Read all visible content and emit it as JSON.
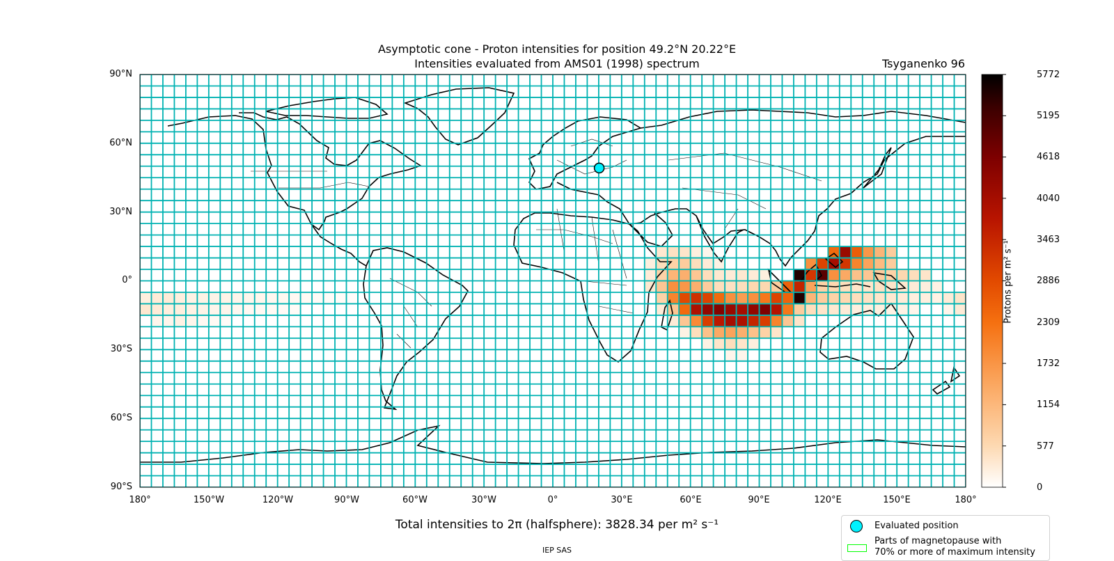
{
  "title": {
    "line1": "Asymptotic cone - Proton intensities for position 49.2°N 20.22°E",
    "line2": "Intensities evaluated from AMS01 (1998) spectrum",
    "model": "Tsyganenko 96"
  },
  "map": {
    "grid_color": "#00b2b2",
    "land_outline_color": "#000000",
    "evaluated_position": {
      "lat": 49.2,
      "lon": 20.22,
      "color": "#00f2ff"
    },
    "lat_ticks": [
      "90°N",
      "60°N",
      "30°N",
      "0°",
      "30°S",
      "60°S",
      "90°S"
    ],
    "lon_ticks": [
      "180°",
      "150°W",
      "120°W",
      "90°W",
      "60°W",
      "30°W",
      "0°",
      "30°E",
      "60°E",
      "90°E",
      "120°E",
      "150°E",
      "180°"
    ]
  },
  "colorbar": {
    "label": "Protons per m² s⁻¹",
    "min": 0,
    "max": 5772,
    "ticks": [
      "5772",
      "5195",
      "4618",
      "4040",
      "3463",
      "2886",
      "2309",
      "1732",
      "1154",
      "577",
      "0"
    ],
    "colormap": "gist_heat_r"
  },
  "chart_data": {
    "type": "heatmap",
    "cell_size_deg": {
      "lon": 5,
      "lat": 5
    },
    "units": "protons per m2 s-1",
    "cells": [
      {
        "lon": 45,
        "lat": 15,
        "value": 350
      },
      {
        "lon": 50,
        "lat": 15,
        "value": 450
      },
      {
        "lon": 55,
        "lat": 15,
        "value": 400
      },
      {
        "lon": 60,
        "lat": 15,
        "value": 250
      },
      {
        "lon": 65,
        "lat": 15,
        "value": 150
      },
      {
        "lon": 40,
        "lat": 10,
        "value": 250
      },
      {
        "lon": 45,
        "lat": 10,
        "value": 500
      },
      {
        "lon": 50,
        "lat": 10,
        "value": 700
      },
      {
        "lon": 55,
        "lat": 10,
        "value": 800
      },
      {
        "lon": 60,
        "lat": 10,
        "value": 500
      },
      {
        "lon": 65,
        "lat": 10,
        "value": 300
      },
      {
        "lon": 70,
        "lat": 10,
        "value": 200
      },
      {
        "lon": 40,
        "lat": 5,
        "value": 300
      },
      {
        "lon": 45,
        "lat": 5,
        "value": 700
      },
      {
        "lon": 50,
        "lat": 5,
        "value": 1200
      },
      {
        "lon": 55,
        "lat": 5,
        "value": 1300
      },
      {
        "lon": 60,
        "lat": 5,
        "value": 900
      },
      {
        "lon": 65,
        "lat": 5,
        "value": 500
      },
      {
        "lon": 70,
        "lat": 5,
        "value": 350
      },
      {
        "lon": 75,
        "lat": 5,
        "value": 300
      },
      {
        "lon": 80,
        "lat": 5,
        "value": 350
      },
      {
        "lon": 85,
        "lat": 5,
        "value": 300
      },
      {
        "lon": 90,
        "lat": 5,
        "value": 250
      },
      {
        "lon": 40,
        "lat": 0,
        "value": 350
      },
      {
        "lon": 45,
        "lat": 0,
        "value": 900
      },
      {
        "lon": 50,
        "lat": 0,
        "value": 1800
      },
      {
        "lon": 55,
        "lat": 0,
        "value": 1700
      },
      {
        "lon": 60,
        "lat": 0,
        "value": 1300
      },
      {
        "lon": 65,
        "lat": 0,
        "value": 800
      },
      {
        "lon": 70,
        "lat": 0,
        "value": 500
      },
      {
        "lon": 75,
        "lat": 0,
        "value": 450
      },
      {
        "lon": 80,
        "lat": 0,
        "value": 500
      },
      {
        "lon": 85,
        "lat": 0,
        "value": 600
      },
      {
        "lon": 90,
        "lat": 0,
        "value": 600
      },
      {
        "lon": 95,
        "lat": 0,
        "value": 800
      },
      {
        "lon": 45,
        "lat": -5,
        "value": 700
      },
      {
        "lon": 50,
        "lat": -5,
        "value": 2000
      },
      {
        "lon": 55,
        "lat": -5,
        "value": 2900
      },
      {
        "lon": 60,
        "lat": -5,
        "value": 3300
      },
      {
        "lon": 65,
        "lat": -5,
        "value": 3000
      },
      {
        "lon": 70,
        "lat": -5,
        "value": 2400
      },
      {
        "lon": 75,
        "lat": -5,
        "value": 1800
      },
      {
        "lon": 80,
        "lat": -5,
        "value": 1600
      },
      {
        "lon": 85,
        "lat": -5,
        "value": 1800
      },
      {
        "lon": 90,
        "lat": -5,
        "value": 2200
      },
      {
        "lon": 95,
        "lat": -5,
        "value": 3000
      },
      {
        "lon": 100,
        "lat": -5,
        "value": 2500
      },
      {
        "lon": 45,
        "lat": -10,
        "value": 300
      },
      {
        "lon": 50,
        "lat": -10,
        "value": 900
      },
      {
        "lon": 55,
        "lat": -10,
        "value": 2400
      },
      {
        "lon": 60,
        "lat": -10,
        "value": 3900
      },
      {
        "lon": 65,
        "lat": -10,
        "value": 4300
      },
      {
        "lon": 70,
        "lat": -10,
        "value": 4500
      },
      {
        "lon": 75,
        "lat": -10,
        "value": 4200
      },
      {
        "lon": 80,
        "lat": -10,
        "value": 4000
      },
      {
        "lon": 85,
        "lat": -10,
        "value": 4300
      },
      {
        "lon": 90,
        "lat": -10,
        "value": 4600
      },
      {
        "lon": 95,
        "lat": -10,
        "value": 3800
      },
      {
        "lon": 100,
        "lat": -10,
        "value": 2300
      },
      {
        "lon": 105,
        "lat": -10,
        "value": 900
      },
      {
        "lon": 50,
        "lat": -15,
        "value": 300
      },
      {
        "lon": 55,
        "lat": -15,
        "value": 900
      },
      {
        "lon": 60,
        "lat": -15,
        "value": 1900
      },
      {
        "lon": 65,
        "lat": -15,
        "value": 3100
      },
      {
        "lon": 70,
        "lat": -15,
        "value": 3700
      },
      {
        "lon": 75,
        "lat": -15,
        "value": 4000
      },
      {
        "lon": 80,
        "lat": -15,
        "value": 3900
      },
      {
        "lon": 85,
        "lat": -15,
        "value": 3500
      },
      {
        "lon": 90,
        "lat": -15,
        "value": 3100
      },
      {
        "lon": 95,
        "lat": -15,
        "value": 2000
      },
      {
        "lon": 100,
        "lat": -15,
        "value": 900
      },
      {
        "lon": 105,
        "lat": -15,
        "value": 400
      },
      {
        "lon": 55,
        "lat": -20,
        "value": 200
      },
      {
        "lon": 60,
        "lat": -20,
        "value": 500
      },
      {
        "lon": 65,
        "lat": -20,
        "value": 1000
      },
      {
        "lon": 70,
        "lat": -20,
        "value": 1400
      },
      {
        "lon": 75,
        "lat": -20,
        "value": 1500
      },
      {
        "lon": 80,
        "lat": -20,
        "value": 1300
      },
      {
        "lon": 85,
        "lat": -20,
        "value": 1000
      },
      {
        "lon": 90,
        "lat": -20,
        "value": 700
      },
      {
        "lon": 95,
        "lat": -20,
        "value": 400
      },
      {
        "lon": 65,
        "lat": -25,
        "value": 200
      },
      {
        "lon": 70,
        "lat": -25,
        "value": 400
      },
      {
        "lon": 75,
        "lat": -25,
        "value": 500
      },
      {
        "lon": 80,
        "lat": -25,
        "value": 400
      },
      {
        "lon": 85,
        "lat": -25,
        "value": 250
      },
      {
        "lon": 75,
        "lat": -30,
        "value": 150
      },
      {
        "lon": 80,
        "lat": -30,
        "value": 150
      },
      {
        "lon": 100,
        "lat": 0,
        "value": 2500
      },
      {
        "lon": 105,
        "lat": 0,
        "value": 3500
      },
      {
        "lon": 110,
        "lat": 0,
        "value": 1500
      },
      {
        "lon": 115,
        "lat": 0,
        "value": 700
      },
      {
        "lon": 120,
        "lat": 0,
        "value": 600
      },
      {
        "lon": 125,
        "lat": 0,
        "value": 500
      },
      {
        "lon": 130,
        "lat": 0,
        "value": 400
      },
      {
        "lon": 135,
        "lat": 0,
        "value": 400
      },
      {
        "lon": 140,
        "lat": 0,
        "value": 450
      },
      {
        "lon": 145,
        "lat": 0,
        "value": 400
      },
      {
        "lon": 150,
        "lat": 0,
        "value": 350
      },
      {
        "lon": 155,
        "lat": 0,
        "value": 300
      },
      {
        "lon": 160,
        "lat": 0,
        "value": 250
      },
      {
        "lon": 165,
        "lat": 0,
        "value": 200
      },
      {
        "lon": 105,
        "lat": 5,
        "value": 5500
      },
      {
        "lon": 110,
        "lat": 5,
        "value": 3200
      },
      {
        "lon": 115,
        "lat": 5,
        "value": 5000
      },
      {
        "lon": 120,
        "lat": 5,
        "value": 1800
      },
      {
        "lon": 125,
        "lat": 5,
        "value": 1400
      },
      {
        "lon": 130,
        "lat": 5,
        "value": 1000
      },
      {
        "lon": 135,
        "lat": 5,
        "value": 900
      },
      {
        "lon": 140,
        "lat": 5,
        "value": 800
      },
      {
        "lon": 145,
        "lat": 5,
        "value": 700
      },
      {
        "lon": 150,
        "lat": 5,
        "value": 600
      },
      {
        "lon": 155,
        "lat": 5,
        "value": 500
      },
      {
        "lon": 160,
        "lat": 5,
        "value": 400
      },
      {
        "lon": 100,
        "lat": -5,
        "value": 2500
      },
      {
        "lon": 105,
        "lat": -5,
        "value": 5500
      },
      {
        "lon": 110,
        "lat": -5,
        "value": 1200
      },
      {
        "lon": 115,
        "lat": -5,
        "value": 800
      },
      {
        "lon": 120,
        "lat": -5,
        "value": 700
      },
      {
        "lon": 125,
        "lat": -5,
        "value": 600
      },
      {
        "lon": 130,
        "lat": -5,
        "value": 500
      },
      {
        "lon": 135,
        "lat": -5,
        "value": 450
      },
      {
        "lon": 140,
        "lat": -5,
        "value": 400
      },
      {
        "lon": 145,
        "lat": -5,
        "value": 350
      },
      {
        "lon": 150,
        "lat": -5,
        "value": 300
      },
      {
        "lon": 155,
        "lat": -5,
        "value": 250
      },
      {
        "lon": 160,
        "lat": -5,
        "value": 250
      },
      {
        "lon": 165,
        "lat": -5,
        "value": 200
      },
      {
        "lon": 170,
        "lat": -5,
        "value": 300
      },
      {
        "lon": 175,
        "lat": -5,
        "value": 400
      },
      {
        "lon": 100,
        "lat": -10,
        "value": 2200
      },
      {
        "lon": 105,
        "lat": -10,
        "value": 800
      },
      {
        "lon": 110,
        "lat": -10,
        "value": 500
      },
      {
        "lon": 115,
        "lat": -10,
        "value": 400
      },
      {
        "lon": 120,
        "lat": -10,
        "value": 350
      },
      {
        "lon": 125,
        "lat": -10,
        "value": 300
      },
      {
        "lon": 130,
        "lat": -10,
        "value": 250
      },
      {
        "lon": 135,
        "lat": -10,
        "value": 250
      },
      {
        "lon": 140,
        "lat": -10,
        "value": 250
      },
      {
        "lon": 145,
        "lat": -10,
        "value": 200
      },
      {
        "lon": 150,
        "lat": -10,
        "value": 200
      },
      {
        "lon": 155,
        "lat": -10,
        "value": 150
      },
      {
        "lon": 170,
        "lat": -10,
        "value": 150
      },
      {
        "lon": 175,
        "lat": -10,
        "value": 300
      },
      {
        "lon": 110,
        "lat": 10,
        "value": 1800
      },
      {
        "lon": 115,
        "lat": 10,
        "value": 3000
      },
      {
        "lon": 120,
        "lat": 10,
        "value": 4000
      },
      {
        "lon": 125,
        "lat": 10,
        "value": 3200
      },
      {
        "lon": 130,
        "lat": 10,
        "value": 2000
      },
      {
        "lon": 135,
        "lat": 10,
        "value": 1500
      },
      {
        "lon": 140,
        "lat": 10,
        "value": 1100
      },
      {
        "lon": 145,
        "lat": 10,
        "value": 800
      },
      {
        "lon": 120,
        "lat": 15,
        "value": 2400
      },
      {
        "lon": 125,
        "lat": 15,
        "value": 4200
      },
      {
        "lon": 130,
        "lat": 15,
        "value": 2600
      },
      {
        "lon": 135,
        "lat": 15,
        "value": 1700
      },
      {
        "lon": 140,
        "lat": 15,
        "value": 1200
      },
      {
        "lon": 145,
        "lat": 15,
        "value": 800
      },
      {
        "lon": -180,
        "lat": -5,
        "value": 250
      },
      {
        "lon": -175,
        "lat": -5,
        "value": 300
      },
      {
        "lon": -170,
        "lat": -5,
        "value": 300
      },
      {
        "lon": -165,
        "lat": -5,
        "value": 250
      },
      {
        "lon": -160,
        "lat": -5,
        "value": 200
      },
      {
        "lon": -155,
        "lat": -5,
        "value": 200
      },
      {
        "lon": -150,
        "lat": -5,
        "value": 180
      },
      {
        "lon": -145,
        "lat": -5,
        "value": 180
      },
      {
        "lon": -140,
        "lat": -5,
        "value": 160
      },
      {
        "lon": -135,
        "lat": -5,
        "value": 150
      },
      {
        "lon": -130,
        "lat": -5,
        "value": 140
      },
      {
        "lon": -125,
        "lat": -5,
        "value": 120
      },
      {
        "lon": -120,
        "lat": -5,
        "value": 110
      },
      {
        "lon": -115,
        "lat": -5,
        "value": 100
      },
      {
        "lon": -110,
        "lat": -5,
        "value": 80
      },
      {
        "lon": -105,
        "lat": -5,
        "value": 70
      },
      {
        "lon": -100,
        "lat": -5,
        "value": 60
      },
      {
        "lon": -95,
        "lat": -5,
        "value": 50
      },
      {
        "lon": -90,
        "lat": -5,
        "value": 40
      },
      {
        "lon": -180,
        "lat": -10,
        "value": 350
      },
      {
        "lon": -175,
        "lat": -10,
        "value": 300
      },
      {
        "lon": -170,
        "lat": -10,
        "value": 250
      },
      {
        "lon": -165,
        "lat": -10,
        "value": 250
      },
      {
        "lon": -160,
        "lat": -10,
        "value": 200
      },
      {
        "lon": -155,
        "lat": -10,
        "value": 180
      },
      {
        "lon": -150,
        "lat": -10,
        "value": 150
      },
      {
        "lon": -145,
        "lat": -10,
        "value": 150
      },
      {
        "lon": -140,
        "lat": -10,
        "value": 120
      },
      {
        "lon": -135,
        "lat": -10,
        "value": 100
      },
      {
        "lon": -130,
        "lat": -10,
        "value": 90
      },
      {
        "lon": -125,
        "lat": -10,
        "value": 80
      },
      {
        "lon": -120,
        "lat": -10,
        "value": 70
      },
      {
        "lon": -115,
        "lat": -10,
        "value": 60
      },
      {
        "lon": -175,
        "lat": -15,
        "value": 150
      },
      {
        "lon": -170,
        "lat": -15,
        "value": 150
      },
      {
        "lon": -165,
        "lat": -15,
        "value": 200
      },
      {
        "lon": -160,
        "lat": -15,
        "value": 150
      },
      {
        "lon": -155,
        "lat": -15,
        "value": 100
      },
      {
        "lon": -150,
        "lat": -15,
        "value": 80
      },
      {
        "lon": -145,
        "lat": -15,
        "value": 60
      }
    ]
  },
  "total": {
    "text": "Total intensities to 2π (halfsphere): 3828.34 per m² s⁻¹",
    "value": 3828.34
  },
  "legend": {
    "evaluated_position": "Evaluated position",
    "magnetopause_line1": "Parts of magnetopause with",
    "magnetopause_line2": "70% or more of maximum intensity",
    "magnetopause_color": "#00ff00"
  },
  "credit": "IEP SAS"
}
